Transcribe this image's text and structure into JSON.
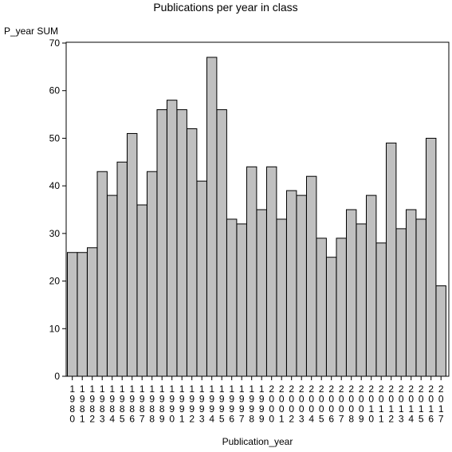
{
  "chart_data": {
    "type": "bar",
    "title": "Publications per year in class",
    "xlabel": "Publication_year",
    "ylabel": "P_year SUM",
    "ylim": [
      0,
      70
    ],
    "yticks": [
      0,
      10,
      20,
      30,
      40,
      50,
      60,
      70
    ],
    "grid": false,
    "legend": "none",
    "bar_color": "#c0c0c0",
    "categories": [
      "1980",
      "1981",
      "1982",
      "1983",
      "1984",
      "1985",
      "1986",
      "1987",
      "1988",
      "1989",
      "1990",
      "1991",
      "1992",
      "1993",
      "1994",
      "1995",
      "1996",
      "1997",
      "1998",
      "1999",
      "2000",
      "2001",
      "2002",
      "2003",
      "2004",
      "2005",
      "2006",
      "2007",
      "2008",
      "2009",
      "2010",
      "2011",
      "2012",
      "2013",
      "2014",
      "2015",
      "2016",
      "2017"
    ],
    "values": [
      26,
      26,
      27,
      43,
      38,
      45,
      51,
      36,
      43,
      56,
      58,
      56,
      52,
      41,
      67,
      56,
      33,
      32,
      44,
      35,
      44,
      33,
      39,
      38,
      42,
      29,
      25,
      29,
      35,
      32,
      38,
      28,
      49,
      31,
      35,
      33,
      50,
      19
    ]
  }
}
